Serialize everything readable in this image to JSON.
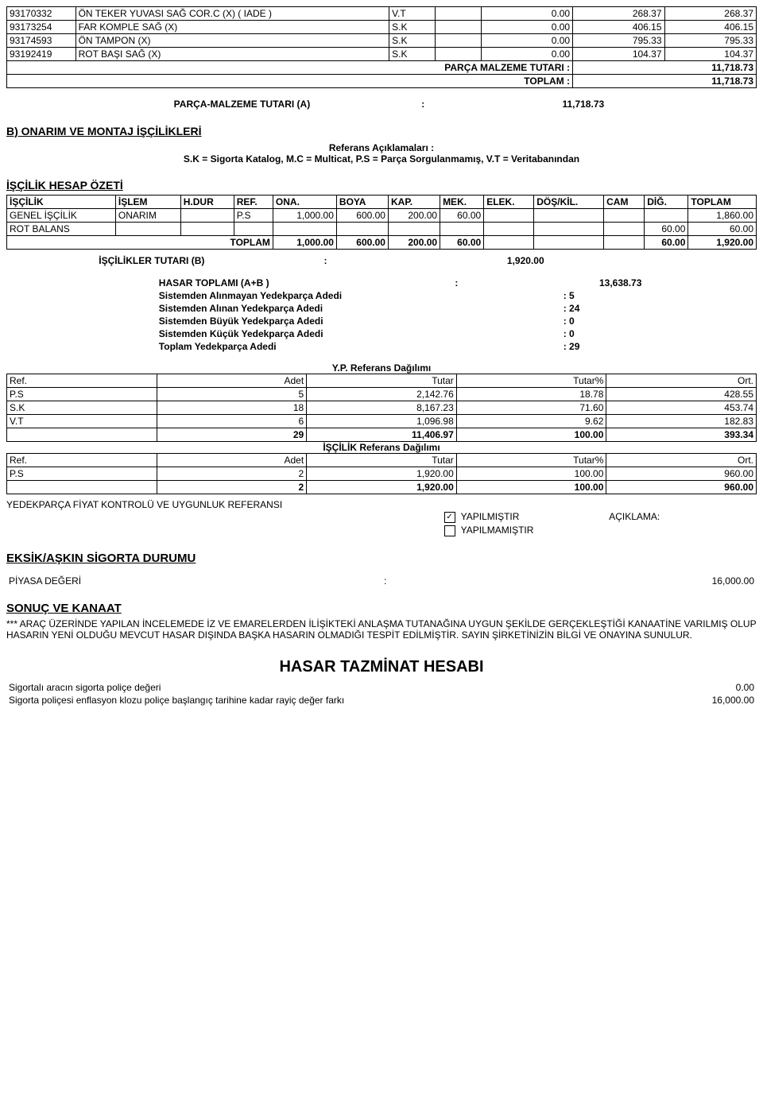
{
  "parts_top": {
    "rows": [
      {
        "code": "93170332",
        "desc": "ÖN TEKER YUVASI SAĞ COR.C (X) ( IADE )",
        "ref": "V.T",
        "c1": "0.00",
        "c2": "268.37",
        "c3": "268.37"
      },
      {
        "code": "93173254",
        "desc": "FAR KOMPLE SAĞ (X)",
        "ref": "S.K",
        "c1": "0.00",
        "c2": "406.15",
        "c3": "406.15"
      },
      {
        "code": "93174593",
        "desc": "ÖN TAMPON (X)",
        "ref": "S.K",
        "c1": "0.00",
        "c2": "795.33",
        "c3": "795.33"
      },
      {
        "code": "93192419",
        "desc": "ROT BAŞI SAĞ (X)",
        "ref": "S.K",
        "c1": "0.00",
        "c2": "104.37",
        "c3": "104.37"
      }
    ],
    "subtotal_label": "PARÇA MALZEME TUTARI :",
    "subtotal_value": "11,718.73",
    "toplam_label": "TOPLAM :",
    "toplam_value": "11,718.73"
  },
  "part_total_line": {
    "label": "PARÇA-MALZEME TUTARI (A)",
    "sep": ":",
    "value": "11,718.73"
  },
  "section_b": "B) ONARIM VE MONTAJ İŞÇİLİKLERİ",
  "ref_title": "Referans Açıklamaları :",
  "ref_text": "S.K = Sigorta Katalog, M.C = Multicat, P.S = Parça Sorgulanmamış, V.T = Veritabanından",
  "iscilik_title": "İŞÇİLİK HESAP ÖZETİ",
  "iscilik_headers": [
    "İŞÇİLİK",
    "İŞLEM",
    "H.DUR",
    "REF.",
    "ONA.",
    "BOYA",
    "KAP.",
    "MEK.",
    "ELEK.",
    "DÖŞ/KİL.",
    "CAM",
    "DİĞ.",
    "TOPLAM"
  ],
  "iscilik_rows": [
    {
      "c": [
        "GENEL İŞÇİLİK",
        "ONARIM",
        "",
        "P.S",
        "1,000.00",
        "600.00",
        "200.00",
        "60.00",
        "",
        "",
        "",
        "",
        "1,860.00"
      ]
    },
    {
      "c": [
        "ROT BALANS",
        "",
        "",
        "",
        "",
        "",
        "",
        "",
        "",
        "",
        "",
        "60.00",
        "60.00"
      ]
    }
  ],
  "iscilik_total": {
    "label": "TOPLAM",
    "c": [
      "1,000.00",
      "600.00",
      "200.00",
      "60.00",
      "",
      "",
      "",
      "60.00",
      "1,920.00"
    ]
  },
  "iscilik_b": {
    "label": "İŞÇİLİKLER TUTARI (B)",
    "sep": ":",
    "value": "1,920.00"
  },
  "hasar_toplami": {
    "label": "HASAR TOPLAMI (A+B )",
    "sep": ":",
    "value": "13,638.73"
  },
  "stats": [
    {
      "label": "Sistemden Alınmayan Yedekparça Adedi",
      "value": ": 5"
    },
    {
      "label": "Sistemden Alınan Yedekparça Adedi",
      "value": ": 24"
    },
    {
      "label": "Sistemden Büyük Yedekparça Adedi",
      "value": ": 0"
    },
    {
      "label": "Sistemden Küçük Yedekparça Adedi",
      "value": ": 0"
    },
    {
      "label": "Toplam Yedekparça Adedi",
      "value": ": 29"
    }
  ],
  "yp_title": "Y.P. Referans Dağılımı",
  "yp_headers": [
    "Ref.",
    "Adet",
    "Tutar",
    "Tutar%",
    "Ort."
  ],
  "yp_rows": [
    {
      "c": [
        "P.S",
        "5",
        "2,142.76",
        "18.78",
        "428.55"
      ]
    },
    {
      "c": [
        "S.K",
        "18",
        "8,167.23",
        "71.60",
        "453.74"
      ]
    },
    {
      "c": [
        "V.T",
        "6",
        "1,096.98",
        "9.62",
        "182.83"
      ]
    },
    {
      "c": [
        "",
        "29",
        "11,406.97",
        "100.00",
        "393.34"
      ]
    }
  ],
  "isc_ref_title": "İŞÇİLİK Referans Dağılımı",
  "isc_ref_rows": [
    {
      "c": [
        "P.S",
        "2",
        "1,920.00",
        "100.00",
        "960.00"
      ]
    },
    {
      "c": [
        "",
        "2",
        "1,920.00",
        "100.00",
        "960.00"
      ]
    }
  ],
  "kontrol_text": "YEDEKPARÇA FİYAT KONTROLÜ VE UYGUNLUK REFERANSI",
  "chk1": "YAPILMIŞTIR",
  "chk2": "YAPILMAMIŞTIR",
  "aciklama": "AÇIKLAMA:",
  "eksik_title": "EKSİK/AŞKIN SİGORTA DURUMU",
  "piyasa": {
    "label": "PİYASA DEĞERİ",
    "sep": ":",
    "value": "16,000.00"
  },
  "sonuc_title": "SONUÇ VE KANAAT",
  "sonuc_text": "*** ARAÇ ÜZERİNDE YAPILAN İNCELEMEDE İZ VE EMARELERDEN İLİŞİKTEKİ ANLAŞMA TUTANAĞINA UYGUN ŞEKİLDE GERÇEKLEŞTİĞİ KANAATİNE VARILMIŞ OLUP HASARIN YENİ OLDUĞU MEVCUT HASAR DIŞINDA BAŞKA HASARIN OLMADIĞI TESPİT EDİLMİŞTİR. SAYIN ŞİRKETİNİZİN BİLGİ VE ONAYINA SUNULUR.",
  "hasar_title": "HASAR TAZMİNAT HESABI",
  "bottom": [
    {
      "label": "Sigortalı aracın sigorta poliçe değeri",
      "value": "0.00"
    },
    {
      "label": "Sigorta poliçesi enflasyon klozu poliçe başlangıç tarihine kadar rayiç değer farkı",
      "value": "16,000.00"
    }
  ]
}
